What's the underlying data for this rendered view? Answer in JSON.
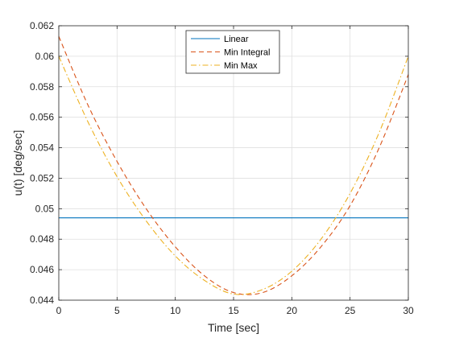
{
  "chart_data": {
    "type": "line",
    "title": "",
    "xlabel": "Time [sec]",
    "ylabel": "u(t) [deg/sec]",
    "xlim": [
      0,
      30
    ],
    "ylim": [
      0.044,
      0.062
    ],
    "xticks": [
      0,
      5,
      10,
      15,
      20,
      25,
      30
    ],
    "xtick_labels": [
      "0",
      "5",
      "10",
      "15",
      "20",
      "25",
      "30"
    ],
    "yticks": [
      0.044,
      0.046,
      0.048,
      0.05,
      0.052,
      0.054,
      0.056,
      0.058,
      0.06,
      0.062
    ],
    "ytick_labels": [
      "0.044",
      "0.046",
      "0.048",
      "0.05",
      "0.052",
      "0.054",
      "0.056",
      "0.058",
      "0.06",
      "0.062"
    ],
    "grid": true,
    "legend_position": "top-center",
    "series": [
      {
        "name": "Linear",
        "color": "#0072BD",
        "style": "solid",
        "x": [
          0,
          5,
          10,
          15,
          20,
          25,
          30
        ],
        "y": [
          0.0494,
          0.0494,
          0.0494,
          0.0494,
          0.0494,
          0.0494,
          0.0494
        ]
      },
      {
        "name": "Min Integral",
        "color": "#D95319",
        "style": "dashed",
        "x": [
          0,
          2.5,
          5,
          7.5,
          10,
          12.5,
          15,
          17.5,
          20,
          22.5,
          25,
          27.5,
          30
        ],
        "y": [
          0.0613,
          0.0568,
          0.0531,
          0.05,
          0.0475,
          0.0456,
          0.0445,
          0.0445,
          0.0456,
          0.0475,
          0.0502,
          0.054,
          0.0588
        ]
      },
      {
        "name": "Min Max",
        "color": "#EDB120",
        "style": "dashdot",
        "x": [
          0,
          2.5,
          5,
          7.5,
          10,
          12.5,
          15,
          17.5,
          20,
          22.5,
          25,
          27.5,
          30
        ],
        "y": [
          0.06,
          0.0557,
          0.0521,
          0.0492,
          0.0469,
          0.0453,
          0.0444,
          0.0447,
          0.0459,
          0.048,
          0.051,
          0.055,
          0.06
        ]
      }
    ]
  }
}
